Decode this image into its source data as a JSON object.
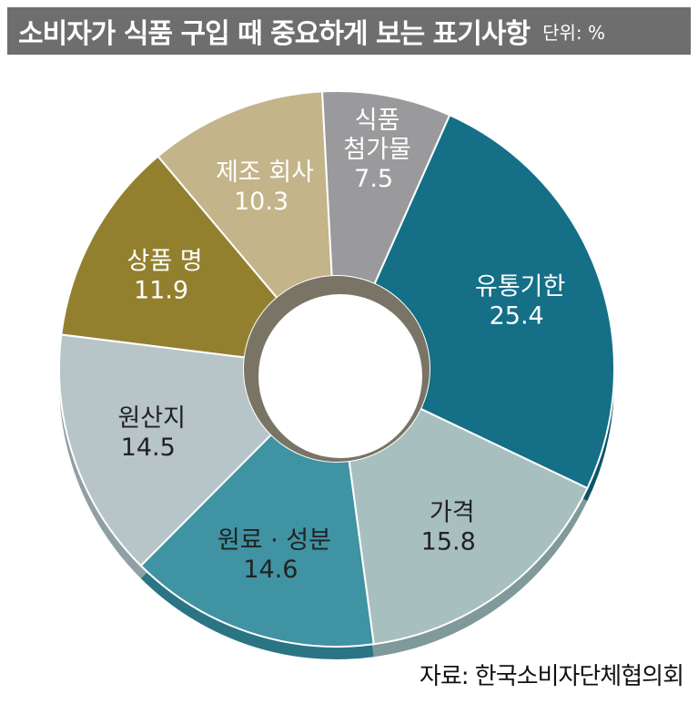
{
  "header": {
    "title": "소비자가 식품 구입 때 중요하게 보는 표기사항",
    "unit": "단위: %"
  },
  "source": "자료: 한국소비자단체협의회",
  "colors": {
    "header_bg": "#6e6e6e",
    "slices": [
      "#146f87",
      "#a8bfbf",
      "#3f93a3",
      "#b8c5c8",
      "#93802f",
      "#c4b48a",
      "#9a9a9d"
    ],
    "sides": [
      "#0d5566",
      "#80999a",
      "#2b7484",
      "#8fa0a4",
      "#6f6120",
      "#9c8d66",
      "#747477"
    ],
    "label_text": [
      "#ffffff",
      "#222222",
      "#222222",
      "#222222",
      "#ffffff",
      "#ffffff",
      "#ffffff"
    ]
  },
  "chart_data": {
    "type": "pie",
    "variant": "donut",
    "title": "소비자가 식품 구입 때 중요하게 보는 표기사항",
    "unit": "%",
    "slices": [
      {
        "label": "유통기한",
        "value": 25.4
      },
      {
        "label": "가격",
        "value": 15.8
      },
      {
        "label": "원료 · 성분",
        "value": 14.6
      },
      {
        "label": "원산지",
        "value": 14.5
      },
      {
        "label": "상품 명",
        "value": 11.9
      },
      {
        "label": "제조 회사",
        "value": 10.3
      },
      {
        "label": "식품\n첨가물",
        "value": 7.5
      }
    ]
  }
}
